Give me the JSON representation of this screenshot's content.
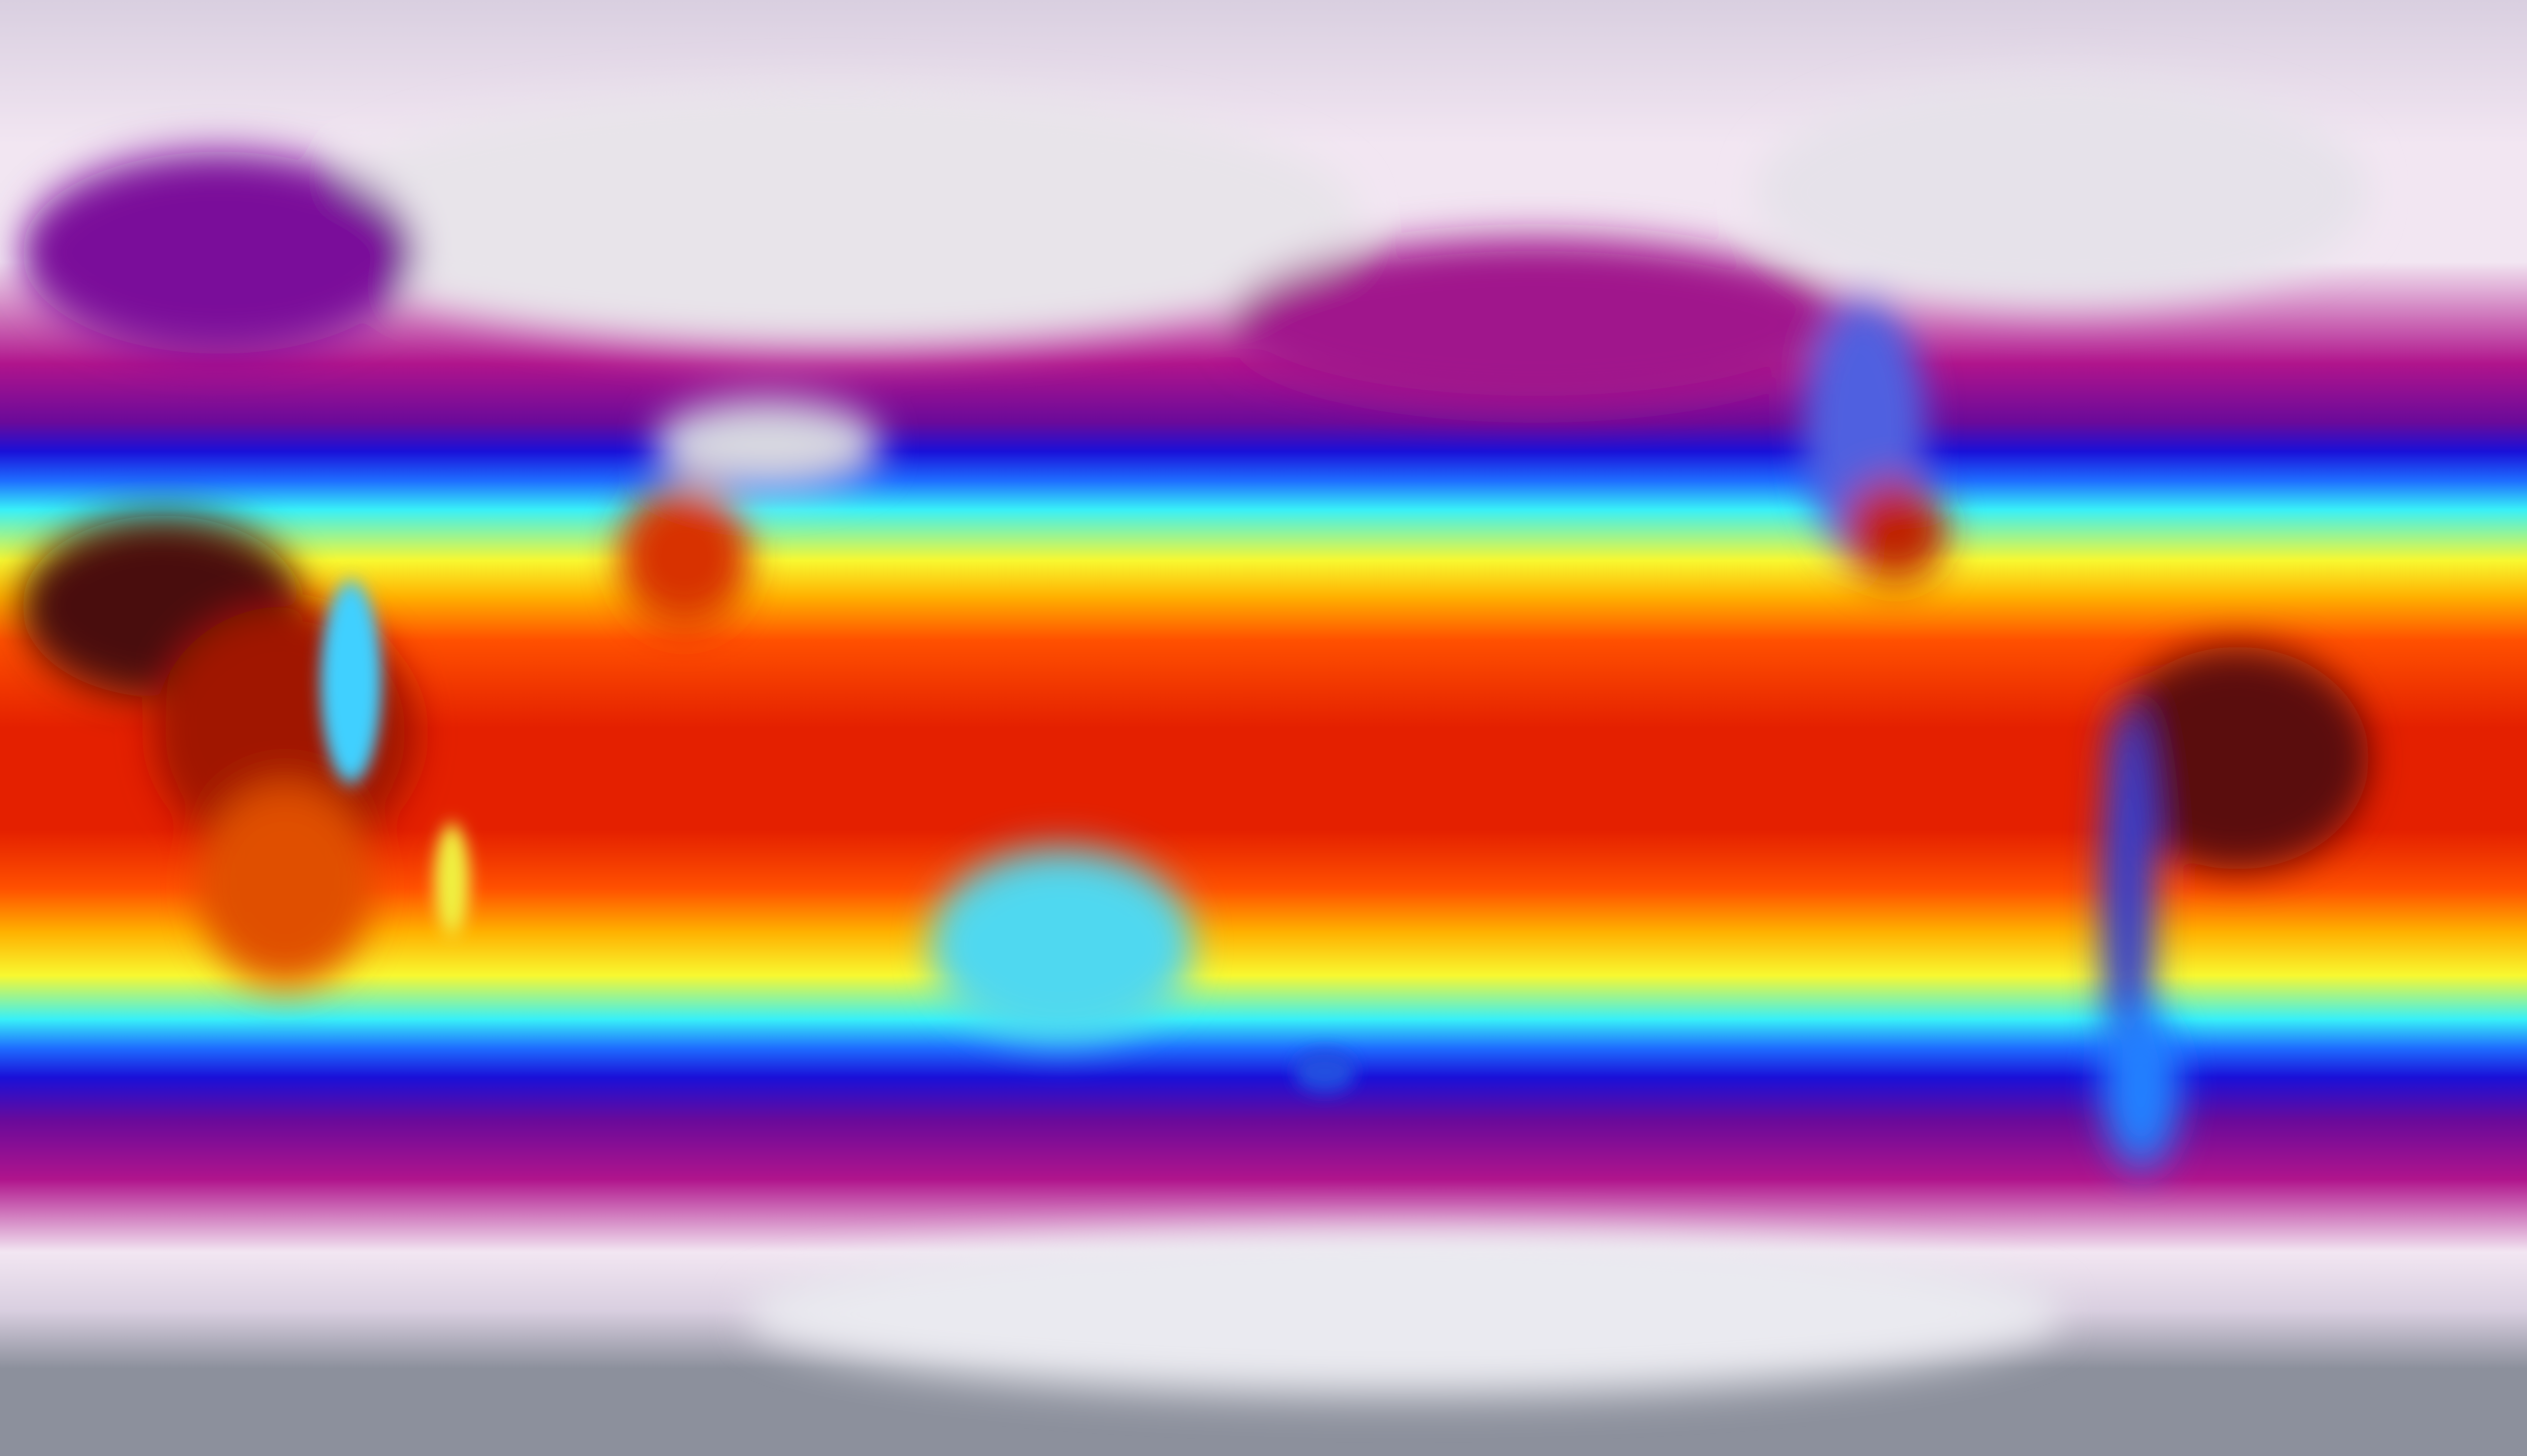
{
  "map": {
    "projection": "equirectangular",
    "colorscale": [
      "#8c909c",
      "#d9cfe0",
      "#f2e6f2",
      "#b0148c",
      "#6a0a9a",
      "#1a10d8",
      "#1e6cff",
      "#38f0f8",
      "#f8f830",
      "#ffb000",
      "#ff5000",
      "#e42000",
      "#3a0808"
    ]
  }
}
